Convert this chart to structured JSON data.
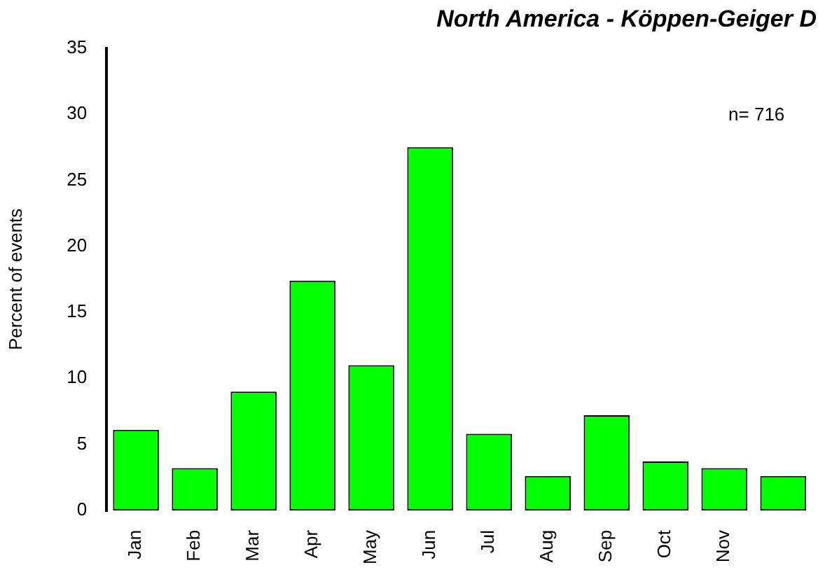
{
  "chart_data": {
    "type": "bar",
    "title": "North America - Köppen-Geiger D",
    "ylabel": "Percent of events",
    "annotations": [
      "n= 716"
    ],
    "categories": [
      "Jan",
      "Feb",
      "Mar",
      "Apr",
      "May",
      "Jun",
      "Jul",
      "Aug",
      "Sep",
      "Oct",
      "Nov",
      null
    ],
    "values": [
      6.1,
      3.2,
      9.0,
      17.4,
      11.0,
      27.5,
      5.8,
      2.6,
      7.2,
      3.7,
      3.2,
      2.6
    ],
    "color": "#00ff00",
    "ylim": [
      0,
      35
    ],
    "yticks": [
      0,
      5,
      10,
      15,
      20,
      25,
      30,
      35
    ],
    "grid": false,
    "legend": false
  }
}
